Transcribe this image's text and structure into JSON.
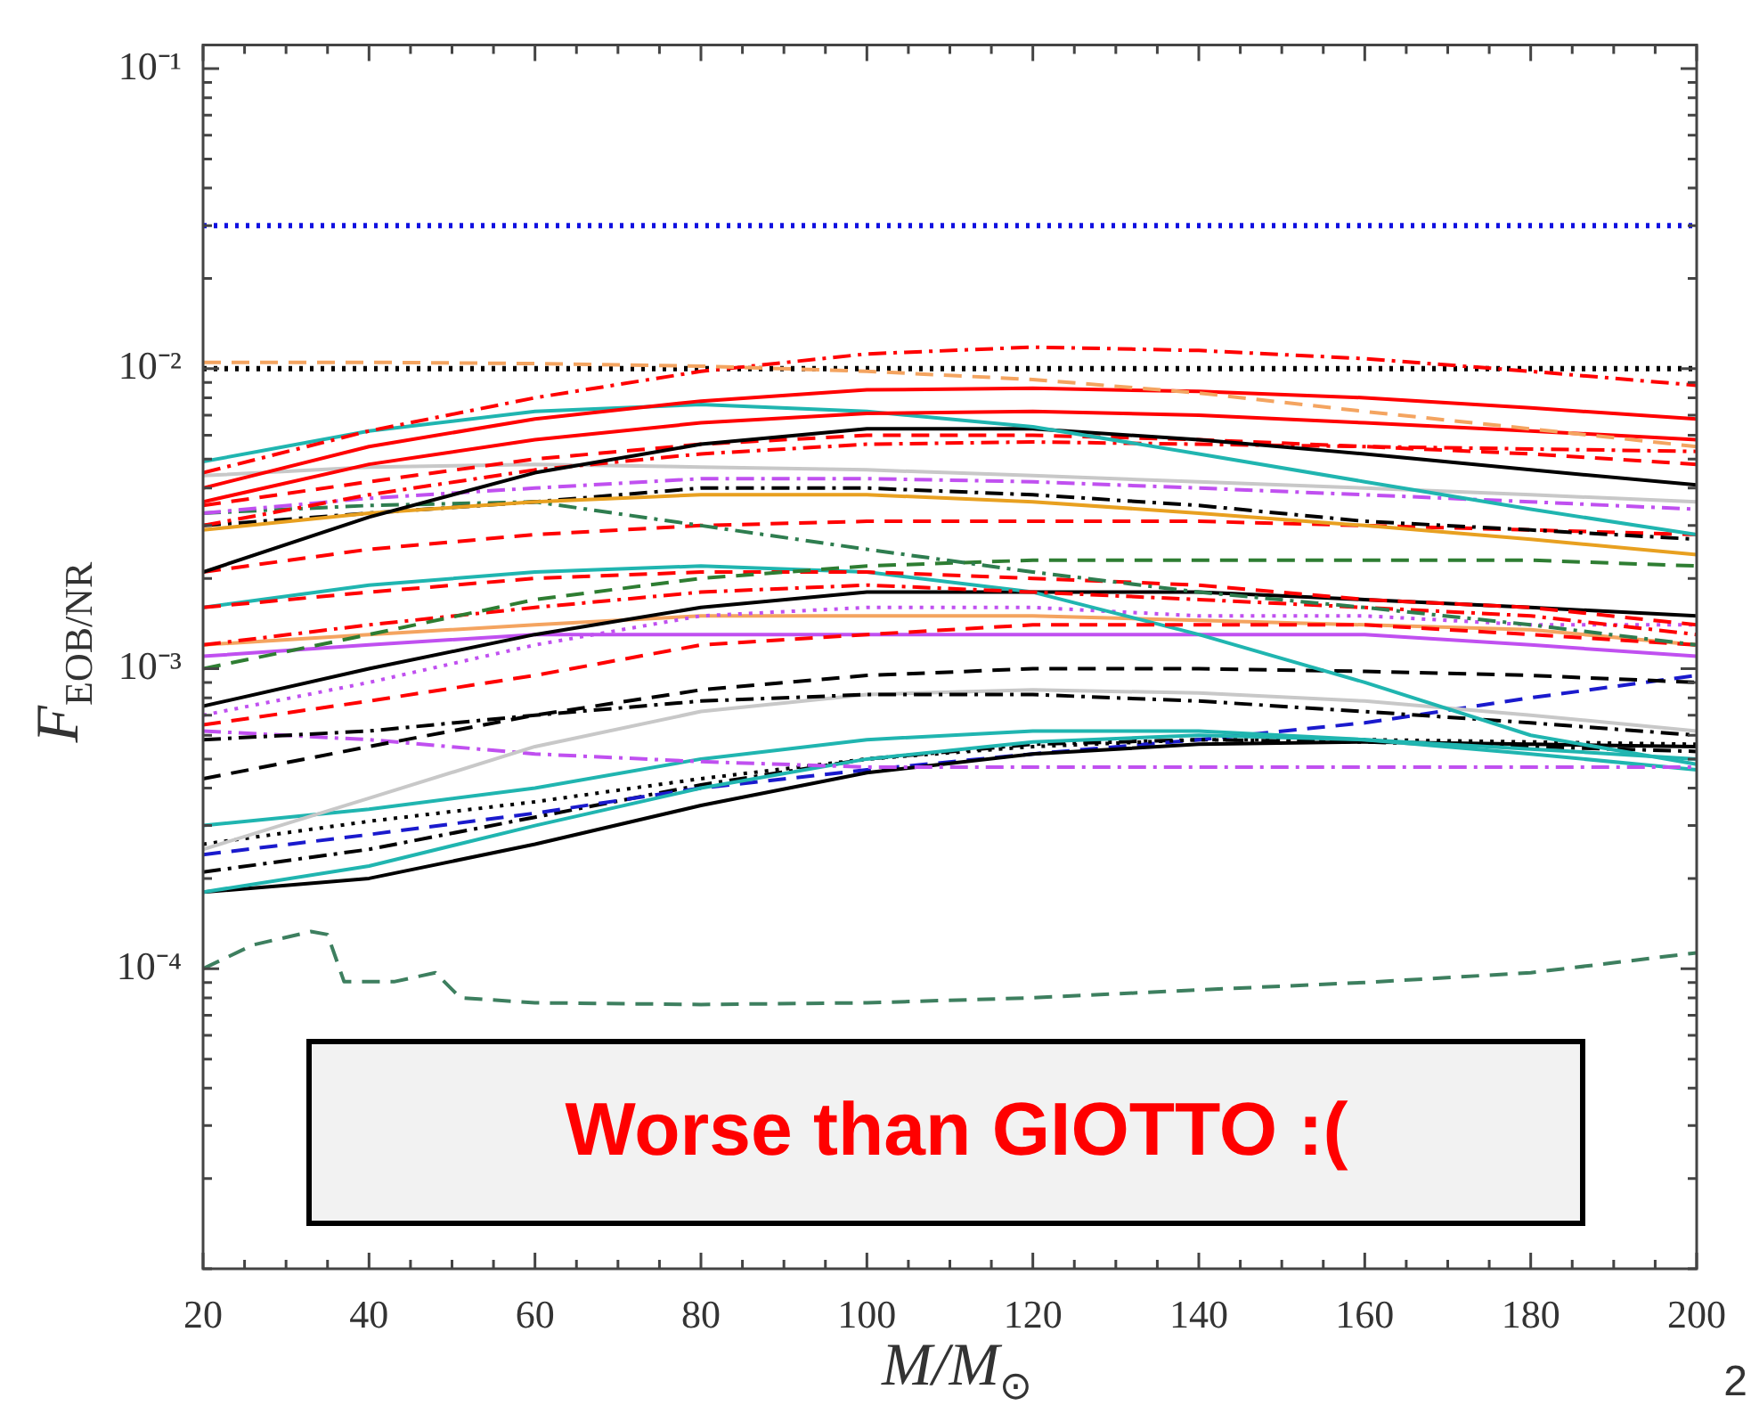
{
  "chart_data": {
    "type": "line",
    "xlabel": "M/M$_{⊙}$",
    "ylabel": "F$_{EOB/NR}$",
    "log": "y",
    "grid": false,
    "legend": false,
    "marker": "none",
    "xlim": [
      20,
      200
    ],
    "ylim": [
      1e-05,
      0.12
    ],
    "xticks": [
      20,
      {
        "value": 25,
        "label": null
      },
      {
        "value": 30,
        "label": null
      },
      {
        "value": 35,
        "label": null
      },
      40,
      {
        "value": 45,
        "label": null
      },
      {
        "value": 50,
        "label": null
      },
      {
        "value": 55,
        "label": null
      },
      60,
      {
        "value": 65,
        "label": null
      },
      {
        "value": 70,
        "label": null
      },
      {
        "value": 75,
        "label": null
      },
      80,
      {
        "value": 85,
        "label": null
      },
      {
        "value": 90,
        "label": null
      },
      {
        "value": 95,
        "label": null
      },
      100,
      {
        "value": 105,
        "label": null
      },
      {
        "value": 110,
        "label": null
      },
      {
        "value": 115,
        "label": null
      },
      120,
      {
        "value": 125,
        "label": null
      },
      {
        "value": 130,
        "label": null
      },
      {
        "value": 135,
        "label": null
      },
      140,
      {
        "value": 145,
        "label": null
      },
      {
        "value": 150,
        "label": null
      },
      {
        "value": 155,
        "label": null
      },
      160,
      {
        "value": 165,
        "label": null
      },
      {
        "value": 170,
        "label": null
      },
      {
        "value": 175,
        "label": null
      },
      180,
      {
        "value": 185,
        "label": null
      },
      {
        "value": 190,
        "label": null
      },
      {
        "value": 195,
        "label": null
      },
      200
    ],
    "yticks": [
      {
        "value": 1e-05,
        "label": null
      },
      {
        "value": 2e-05,
        "label": null
      },
      {
        "value": 3e-05,
        "label": null
      },
      {
        "value": 4e-05,
        "label": null
      },
      {
        "value": 5e-05,
        "label": null
      },
      {
        "value": 6e-05,
        "label": null
      },
      {
        "value": 7e-05,
        "label": null
      },
      {
        "value": 8e-05,
        "label": null
      },
      {
        "value": 9e-05,
        "label": null
      },
      {
        "value": 0.0001,
        "label": "10⁻⁴"
      },
      {
        "value": 0.0002,
        "label": null
      },
      {
        "value": 0.0003,
        "label": null
      },
      {
        "value": 0.0004,
        "label": null
      },
      {
        "value": 0.0005,
        "label": null
      },
      {
        "value": 0.0006,
        "label": null
      },
      {
        "value": 0.0007,
        "label": null
      },
      {
        "value": 0.0008,
        "label": null
      },
      {
        "value": 0.0009,
        "label": null
      },
      {
        "value": 0.001,
        "label": "10⁻³"
      },
      {
        "value": 0.002,
        "label": null
      },
      {
        "value": 0.003,
        "label": null
      },
      {
        "value": 0.004,
        "label": null
      },
      {
        "value": 0.005,
        "label": null
      },
      {
        "value": 0.006,
        "label": null
      },
      {
        "value": 0.007,
        "label": null
      },
      {
        "value": 0.008,
        "label": null
      },
      {
        "value": 0.009,
        "label": null
      },
      {
        "value": 0.01,
        "label": "10⁻²"
      },
      {
        "value": 0.02,
        "label": null
      },
      {
        "value": 0.03,
        "label": null
      },
      {
        "value": 0.04,
        "label": null
      },
      {
        "value": 0.05,
        "label": null
      },
      {
        "value": 0.06,
        "label": null
      },
      {
        "value": 0.07,
        "label": null
      },
      {
        "value": 0.08,
        "label": null
      },
      {
        "value": 0.09,
        "label": null
      },
      {
        "value": 0.1,
        "label": "10⁻¹"
      }
    ],
    "ref_lines": [
      {
        "axis": "y",
        "value": 0.03,
        "color": "#1010e0",
        "line_style": "dotted"
      },
      {
        "axis": "y",
        "value": 0.01,
        "color": "#000000",
        "line_style": "dotted"
      }
    ],
    "annotations": [
      "Worse than GIOTTO :(",
      "2"
    ],
    "x": [
      20,
      40,
      60,
      80,
      100,
      120,
      140,
      160,
      180,
      200
    ],
    "series": [
      {
        "color": "#f4a460",
        "line_style": "dashed",
        "values": [
          0.0105,
          0.0105,
          0.0104,
          0.0102,
          0.0098,
          0.0092,
          0.0083,
          0.0072,
          0.0063,
          0.0055
        ]
      },
      {
        "color": "#ff0000",
        "line_style": "dashdot",
        "values": [
          0.0045,
          0.0062,
          0.008,
          0.0098,
          0.0112,
          0.0118,
          0.0115,
          0.0108,
          0.0098,
          0.0088
        ]
      },
      {
        "color": "#ff0000",
        "line_style": "solid",
        "values": [
          0.004,
          0.0055,
          0.0068,
          0.0078,
          0.0085,
          0.0086,
          0.0084,
          0.008,
          0.0074,
          0.0068
        ]
      },
      {
        "color": "#ff0000",
        "line_style": "solid",
        "values": [
          0.0036,
          0.0048,
          0.0058,
          0.0066,
          0.0071,
          0.0072,
          0.007,
          0.0066,
          0.0062,
          0.0058
        ]
      },
      {
        "color": "#20b5b0",
        "line_style": "solid",
        "values": [
          0.0049,
          0.0062,
          0.0072,
          0.0076,
          0.0072,
          0.0064,
          0.0052,
          0.0042,
          0.0034,
          0.0028
        ]
      },
      {
        "color": "#000000",
        "line_style": "solid",
        "values": [
          0.0021,
          0.0032,
          0.0045,
          0.0056,
          0.0063,
          0.0063,
          0.0058,
          0.0052,
          0.0046,
          0.0041
        ]
      },
      {
        "color": "#ff0000",
        "line_style": "dashed",
        "values": [
          0.0035,
          0.0042,
          0.005,
          0.0056,
          0.006,
          0.006,
          0.0058,
          0.0055,
          0.0052,
          0.0048
        ]
      },
      {
        "color": "#ff0000",
        "line_style": "dashdot",
        "values": [
          0.003,
          0.0038,
          0.0046,
          0.0052,
          0.0056,
          0.0057,
          0.0056,
          0.0055,
          0.0054,
          0.0053
        ]
      },
      {
        "color": "#c8c8c8",
        "line_style": "solid",
        "values": [
          0.0044,
          0.0047,
          0.0048,
          0.0047,
          0.0046,
          0.0044,
          0.0042,
          0.004,
          0.0038,
          0.0036
        ]
      },
      {
        "color": "#c050f0",
        "line_style": "dashdot",
        "values": [
          0.0033,
          0.0037,
          0.004,
          0.0043,
          0.0043,
          0.0042,
          0.004,
          0.0038,
          0.0036,
          0.0034
        ]
      },
      {
        "color": "#e8a020",
        "line_style": "solid",
        "values": [
          0.0029,
          0.0033,
          0.0036,
          0.0038,
          0.0038,
          0.0036,
          0.0033,
          0.003,
          0.0027,
          0.0024
        ]
      },
      {
        "color": "#000000",
        "line_style": "dashdot",
        "values": [
          0.003,
          0.0033,
          0.0036,
          0.004,
          0.004,
          0.0038,
          0.0035,
          0.0031,
          0.0029,
          0.0027
        ]
      },
      {
        "color": "#2e7d4f",
        "line_style": "dashdot",
        "values": [
          0.0033,
          0.0035,
          0.0036,
          0.003,
          0.0025,
          0.0021,
          0.0018,
          0.0016,
          0.0014,
          0.0012
        ]
      },
      {
        "color": "#ff0000",
        "line_style": "dashed",
        "values": [
          0.0021,
          0.0025,
          0.0028,
          0.003,
          0.0031,
          0.0031,
          0.0031,
          0.003,
          0.0029,
          0.0028
        ]
      },
      {
        "color": "#2e7d32",
        "line_style": "dashed",
        "values": [
          0.001,
          0.0013,
          0.0017,
          0.002,
          0.0022,
          0.0023,
          0.0023,
          0.0023,
          0.0023,
          0.0022
        ]
      },
      {
        "color": "#ff0000",
        "line_style": "dashed",
        "values": [
          0.0016,
          0.0018,
          0.002,
          0.0021,
          0.0021,
          0.002,
          0.0019,
          0.0017,
          0.0016,
          0.0014
        ]
      },
      {
        "color": "#ff0000",
        "line_style": "dashdot",
        "values": [
          0.0012,
          0.0014,
          0.0016,
          0.0018,
          0.0019,
          0.0018,
          0.0017,
          0.0016,
          0.0015,
          0.0013
        ]
      },
      {
        "color": "#ff0000",
        "line_style": "dashed",
        "values": [
          0.00065,
          0.00078,
          0.00095,
          0.0012,
          0.0013,
          0.0014,
          0.0014,
          0.0014,
          0.0013,
          0.0012
        ]
      },
      {
        "color": "#20b5b0",
        "line_style": "solid",
        "values": [
          0.0016,
          0.0019,
          0.0021,
          0.0022,
          0.0021,
          0.0018,
          0.0013,
          0.0009,
          0.0006,
          0.00048
        ]
      },
      {
        "color": "#000000",
        "line_style": "solid",
        "values": [
          0.00075,
          0.001,
          0.0013,
          0.0016,
          0.0018,
          0.0018,
          0.0018,
          0.0017,
          0.0016,
          0.0015
        ]
      },
      {
        "color": "#c050f0",
        "line_style": "solid",
        "values": [
          0.0011,
          0.0012,
          0.0013,
          0.0013,
          0.0013,
          0.0013,
          0.0013,
          0.0013,
          0.0012,
          0.0011
        ]
      },
      {
        "color": "#c050f0",
        "line_style": "dotted",
        "values": [
          0.0007,
          0.0009,
          0.0012,
          0.0015,
          0.0016,
          0.0016,
          0.0015,
          0.0015,
          0.0014,
          0.0014
        ]
      },
      {
        "color": "#f4a460",
        "line_style": "solid",
        "values": [
          0.0012,
          0.0013,
          0.0014,
          0.0015,
          0.0015,
          0.0015,
          0.00145,
          0.0014,
          0.00135,
          0.0012
        ]
      },
      {
        "color": "#000000",
        "line_style": "dashed",
        "values": [
          0.00043,
          0.00055,
          0.0007,
          0.00085,
          0.00095,
          0.001,
          0.001,
          0.00098,
          0.00095,
          0.0009
        ]
      },
      {
        "color": "#000000",
        "line_style": "dashdot",
        "values": [
          0.00058,
          0.00062,
          0.0007,
          0.00078,
          0.00082,
          0.00082,
          0.00078,
          0.00072,
          0.00066,
          0.0006
        ]
      },
      {
        "color": "#c8c8c8",
        "line_style": "solid",
        "values": [
          0.00025,
          0.00037,
          0.00055,
          0.00072,
          0.00082,
          0.00085,
          0.00083,
          0.00078,
          0.0007,
          0.00062
        ]
      },
      {
        "color": "#c050f0",
        "line_style": "dashdot",
        "values": [
          0.00062,
          0.00058,
          0.00052,
          0.00049,
          0.00047,
          0.00047,
          0.00047,
          0.00047,
          0.00047,
          0.00047
        ]
      },
      {
        "color": "#20b5b0",
        "line_style": "solid",
        "values": [
          0.0003,
          0.00034,
          0.0004,
          0.0005,
          0.00058,
          0.00062,
          0.00062,
          0.00058,
          0.00052,
          0.00046
        ]
      },
      {
        "color": "#20b5b0",
        "line_style": "solid",
        "values": [
          0.00018,
          0.00022,
          0.0003,
          0.0004,
          0.0005,
          0.00057,
          0.0006,
          0.00058,
          0.00054,
          0.0005
        ]
      },
      {
        "color": "#000000",
        "line_style": "solid",
        "values": [
          0.00018,
          0.0002,
          0.00026,
          0.00035,
          0.00045,
          0.00052,
          0.00056,
          0.00057,
          0.00056,
          0.00055
        ]
      },
      {
        "color": "#000000",
        "line_style": "dotted",
        "values": [
          0.00026,
          0.00031,
          0.00036,
          0.00043,
          0.0005,
          0.00055,
          0.00058,
          0.00058,
          0.00057,
          0.00056
        ]
      },
      {
        "color": "#1a1acd",
        "line_style": "dashed",
        "values": [
          0.00024,
          0.00028,
          0.00033,
          0.0004,
          0.00046,
          0.00052,
          0.00058,
          0.00066,
          0.0008,
          0.00095
        ]
      },
      {
        "color": "#000000",
        "line_style": "dashdot",
        "values": [
          0.00021,
          0.00025,
          0.00032,
          0.00041,
          0.0005,
          0.00056,
          0.00058,
          0.00057,
          0.00055,
          0.00053
        ]
      },
      {
        "color": "#3d7f5f",
        "line_style": "dashed",
        "x": [
          20,
          26,
          33,
          35,
          37,
          43,
          48,
          51,
          60,
          80,
          100,
          120,
          140,
          160,
          180,
          200
        ],
        "values": [
          0.0001,
          0.00012,
          0.000133,
          0.00013,
          9.05e-05,
          9.05e-05,
          9.7e-05,
          8e-05,
          7.7e-05,
          7.6e-05,
          7.7e-05,
          8e-05,
          8.5e-05,
          9e-05,
          9.7e-05,
          0.000113
        ]
      }
    ]
  }
}
